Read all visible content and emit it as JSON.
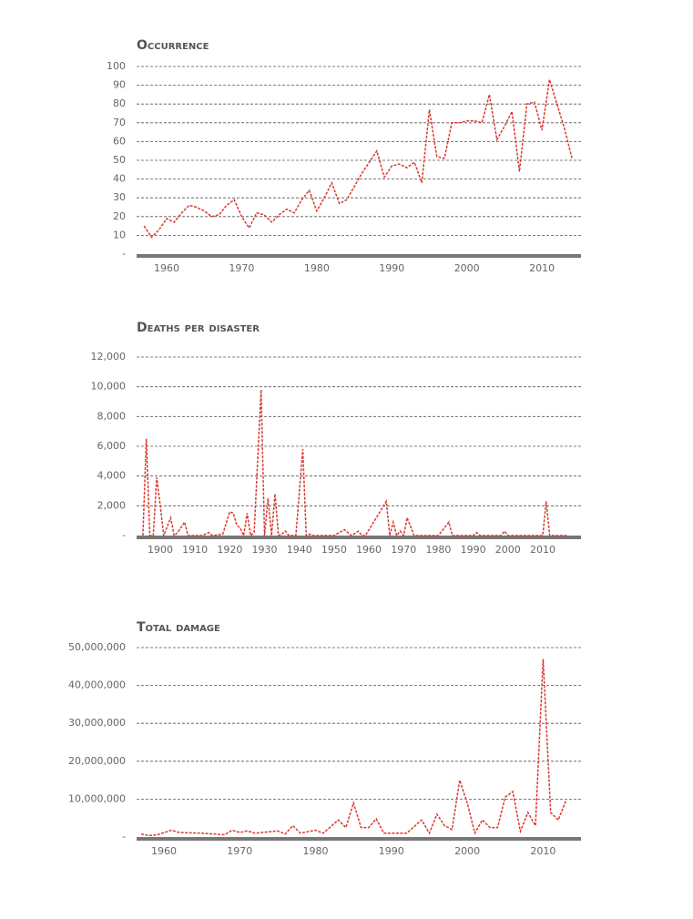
{
  "chart_data": [
    {
      "type": "line",
      "title": "Occurrence",
      "x": [
        1957,
        1958,
        1959,
        1960,
        1961,
        1962,
        1963,
        1964,
        1965,
        1966,
        1967,
        1968,
        1969,
        1970,
        1971,
        1972,
        1973,
        1974,
        1975,
        1976,
        1977,
        1978,
        1979,
        1980,
        1981,
        1982,
        1983,
        1984,
        1985,
        1986,
        1987,
        1988,
        1989,
        1990,
        1991,
        1992,
        1993,
        1994,
        1995,
        1996,
        1997,
        1998,
        1999,
        2000,
        2001,
        2002,
        2003,
        2004,
        2005,
        2006,
        2007,
        2008,
        2009,
        2010,
        2011,
        2012,
        2013,
        2014
      ],
      "values": [
        15,
        9,
        13,
        19,
        17,
        22,
        26,
        25,
        23,
        20,
        21,
        26,
        29,
        20,
        14,
        22,
        21,
        17,
        21,
        24,
        22,
        29,
        34,
        23,
        30,
        38,
        27,
        29,
        36,
        43,
        49,
        55,
        41,
        47,
        48,
        46,
        49,
        38,
        77,
        52,
        51,
        70,
        70,
        71,
        71,
        70,
        85,
        61,
        68,
        76,
        44,
        80,
        81,
        66,
        93,
        80,
        67,
        51
      ],
      "color": "#d83a2e",
      "xlim": [
        1956,
        2015.2
      ],
      "xticks": [
        1960,
        1970,
        1980,
        1990,
        2000,
        2010
      ],
      "ylim": [
        0,
        100
      ],
      "yticks": [
        {
          "value": 0,
          "label": "-"
        },
        10,
        20,
        30,
        40,
        50,
        60,
        70,
        80,
        90,
        100
      ],
      "grid": true
    },
    {
      "type": "line",
      "title": "Deaths per disaster",
      "x": [
        1895,
        1896,
        1897,
        1898,
        1899,
        1900,
        1901,
        1903,
        1904,
        1905,
        1907,
        1908,
        1912,
        1914,
        1915,
        1918,
        1920,
        1921,
        1922,
        1923,
        1924,
        1925,
        1926,
        1927,
        1929,
        1930,
        1931,
        1932,
        1933,
        1934,
        1935,
        1936,
        1937,
        1939,
        1941,
        1942,
        1943,
        1944,
        1950,
        1953,
        1955,
        1957,
        1958,
        1959,
        1965,
        1966,
        1967,
        1968,
        1969,
        1970,
        1971,
        1973,
        1974,
        1980,
        1983,
        1984,
        1990,
        1991,
        1992,
        1998,
        1999,
        2000,
        2010,
        2011,
        2012,
        2017
      ],
      "values": [
        0,
        6500,
        0,
        0,
        3900,
        2000,
        0,
        1200,
        0,
        200,
        900,
        0,
        0,
        200,
        0,
        100,
        1600,
        1500,
        700,
        500,
        0,
        1500,
        0,
        200,
        9800,
        0,
        2500,
        0,
        2800,
        0,
        100,
        300,
        0,
        0,
        5800,
        0,
        100,
        0,
        0,
        400,
        0,
        300,
        0,
        0,
        2300,
        0,
        900,
        0,
        300,
        0,
        1200,
        0,
        0,
        0,
        900,
        0,
        0,
        200,
        0,
        0,
        300,
        0,
        0,
        2300,
        0,
        0
      ],
      "color": "#d83a2e",
      "xlim": [
        1893.2,
        2021
      ],
      "xticks": [
        1900,
        1910,
        1920,
        1930,
        1940,
        1950,
        1960,
        1970,
        1980,
        1990,
        2000,
        2010
      ],
      "ylim": [
        0,
        12000
      ],
      "yticks": [
        {
          "value": 0,
          "label": "-"
        },
        {
          "value": 2000,
          "label": "2,000"
        },
        {
          "value": 4000,
          "label": "4,000"
        },
        {
          "value": 6000,
          "label": "6,000"
        },
        {
          "value": 8000,
          "label": "8,000"
        },
        {
          "value": 10000,
          "label": "10,000"
        },
        {
          "value": 12000,
          "label": "12,000"
        }
      ],
      "grid": true
    },
    {
      "type": "line",
      "title": "Total damage",
      "x": [
        1957,
        1958,
        1959,
        1961,
        1962,
        1965,
        1968,
        1969,
        1970,
        1971,
        1972,
        1975,
        1976,
        1977,
        1978,
        1980,
        1981,
        1983,
        1984,
        1985,
        1986,
        1987,
        1988,
        1989,
        1992,
        1994,
        1995,
        1996,
        1997,
        1998,
        1999,
        2000,
        2001,
        2002,
        2003,
        2004,
        2005,
        2006,
        2007,
        2008,
        2009,
        2010,
        2011,
        2012,
        2013
      ],
      "values": [
        800000,
        400000,
        500000,
        1800000,
        1200000,
        1000000,
        600000,
        1800000,
        1200000,
        1600000,
        1000000,
        1600000,
        800000,
        3000000,
        1000000,
        1800000,
        1000000,
        4500000,
        2500000,
        9000000,
        2500000,
        2500000,
        4800000,
        1000000,
        1000000,
        4500000,
        1000000,
        6000000,
        3000000,
        2000000,
        15000000,
        9000000,
        1000000,
        4500000,
        2500000,
        2500000,
        10500000,
        12000000,
        1500000,
        6500000,
        3000000,
        47000000,
        6500000,
        4500000,
        9500000
      ],
      "color": "#d83a2e",
      "xlim": [
        1956.4,
        2015
      ],
      "xticks": [
        1960,
        1970,
        1980,
        1990,
        2000,
        2010
      ],
      "ylim": [
        0,
        50000000
      ],
      "yticks": [
        {
          "value": 0,
          "label": "-"
        },
        {
          "value": 10000000,
          "label": "10,000,000"
        },
        {
          "value": 20000000,
          "label": "20,000,000"
        },
        {
          "value": 30000000,
          "label": "30,000,000"
        },
        {
          "value": 40000000,
          "label": "40,000,000"
        },
        {
          "value": 50000000,
          "label": "50,000,000"
        }
      ],
      "grid": true
    }
  ]
}
